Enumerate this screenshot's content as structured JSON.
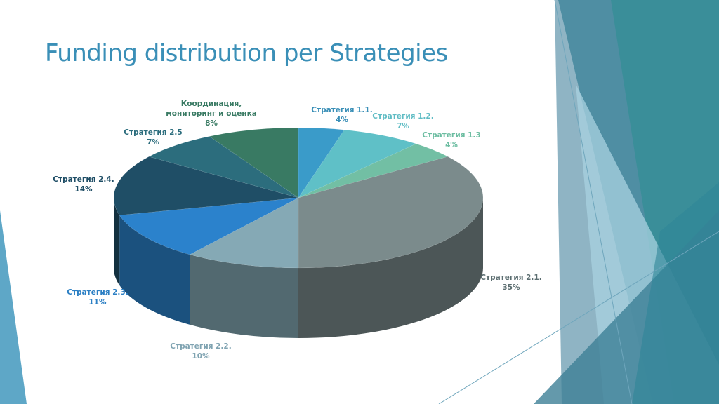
{
  "slide": {
    "title": "Funding distribution per Strategies"
  },
  "chart_data": {
    "type": "pie",
    "title": "",
    "slices": [
      {
        "label": "Стратегия 1.1.",
        "value": 4,
        "value_label": "4%",
        "color": "#3a9bc9"
      },
      {
        "label": "Стратегия 1.2.",
        "value": 7,
        "value_label": "7%",
        "color": "#5fc0c7"
      },
      {
        "label": "Стратегия 1.3",
        "value": 4,
        "value_label": "4%",
        "color": "#72bfa4"
      },
      {
        "label": "Стратегия 2.1.",
        "value": 35,
        "value_label": "35%",
        "color": "#7b8b8c"
      },
      {
        "label": "Стратегия 2.2.",
        "value": 10,
        "value_label": "10%",
        "color": "#85a9b5"
      },
      {
        "label": "Стратегия 2.3.",
        "value": 11,
        "value_label": "11%",
        "color": "#2b82cc"
      },
      {
        "label": "Стратегия 2.4.",
        "value": 14,
        "value_label": "14%",
        "color": "#1f4e66"
      },
      {
        "label": "Стратегия 2.5",
        "value": 7,
        "value_label": "7%",
        "color": "#2c6d7d"
      },
      {
        "label": "Координация, мониторинг и оценка",
        "value": 8,
        "value_label": "8%",
        "color": "#397a63"
      }
    ]
  }
}
